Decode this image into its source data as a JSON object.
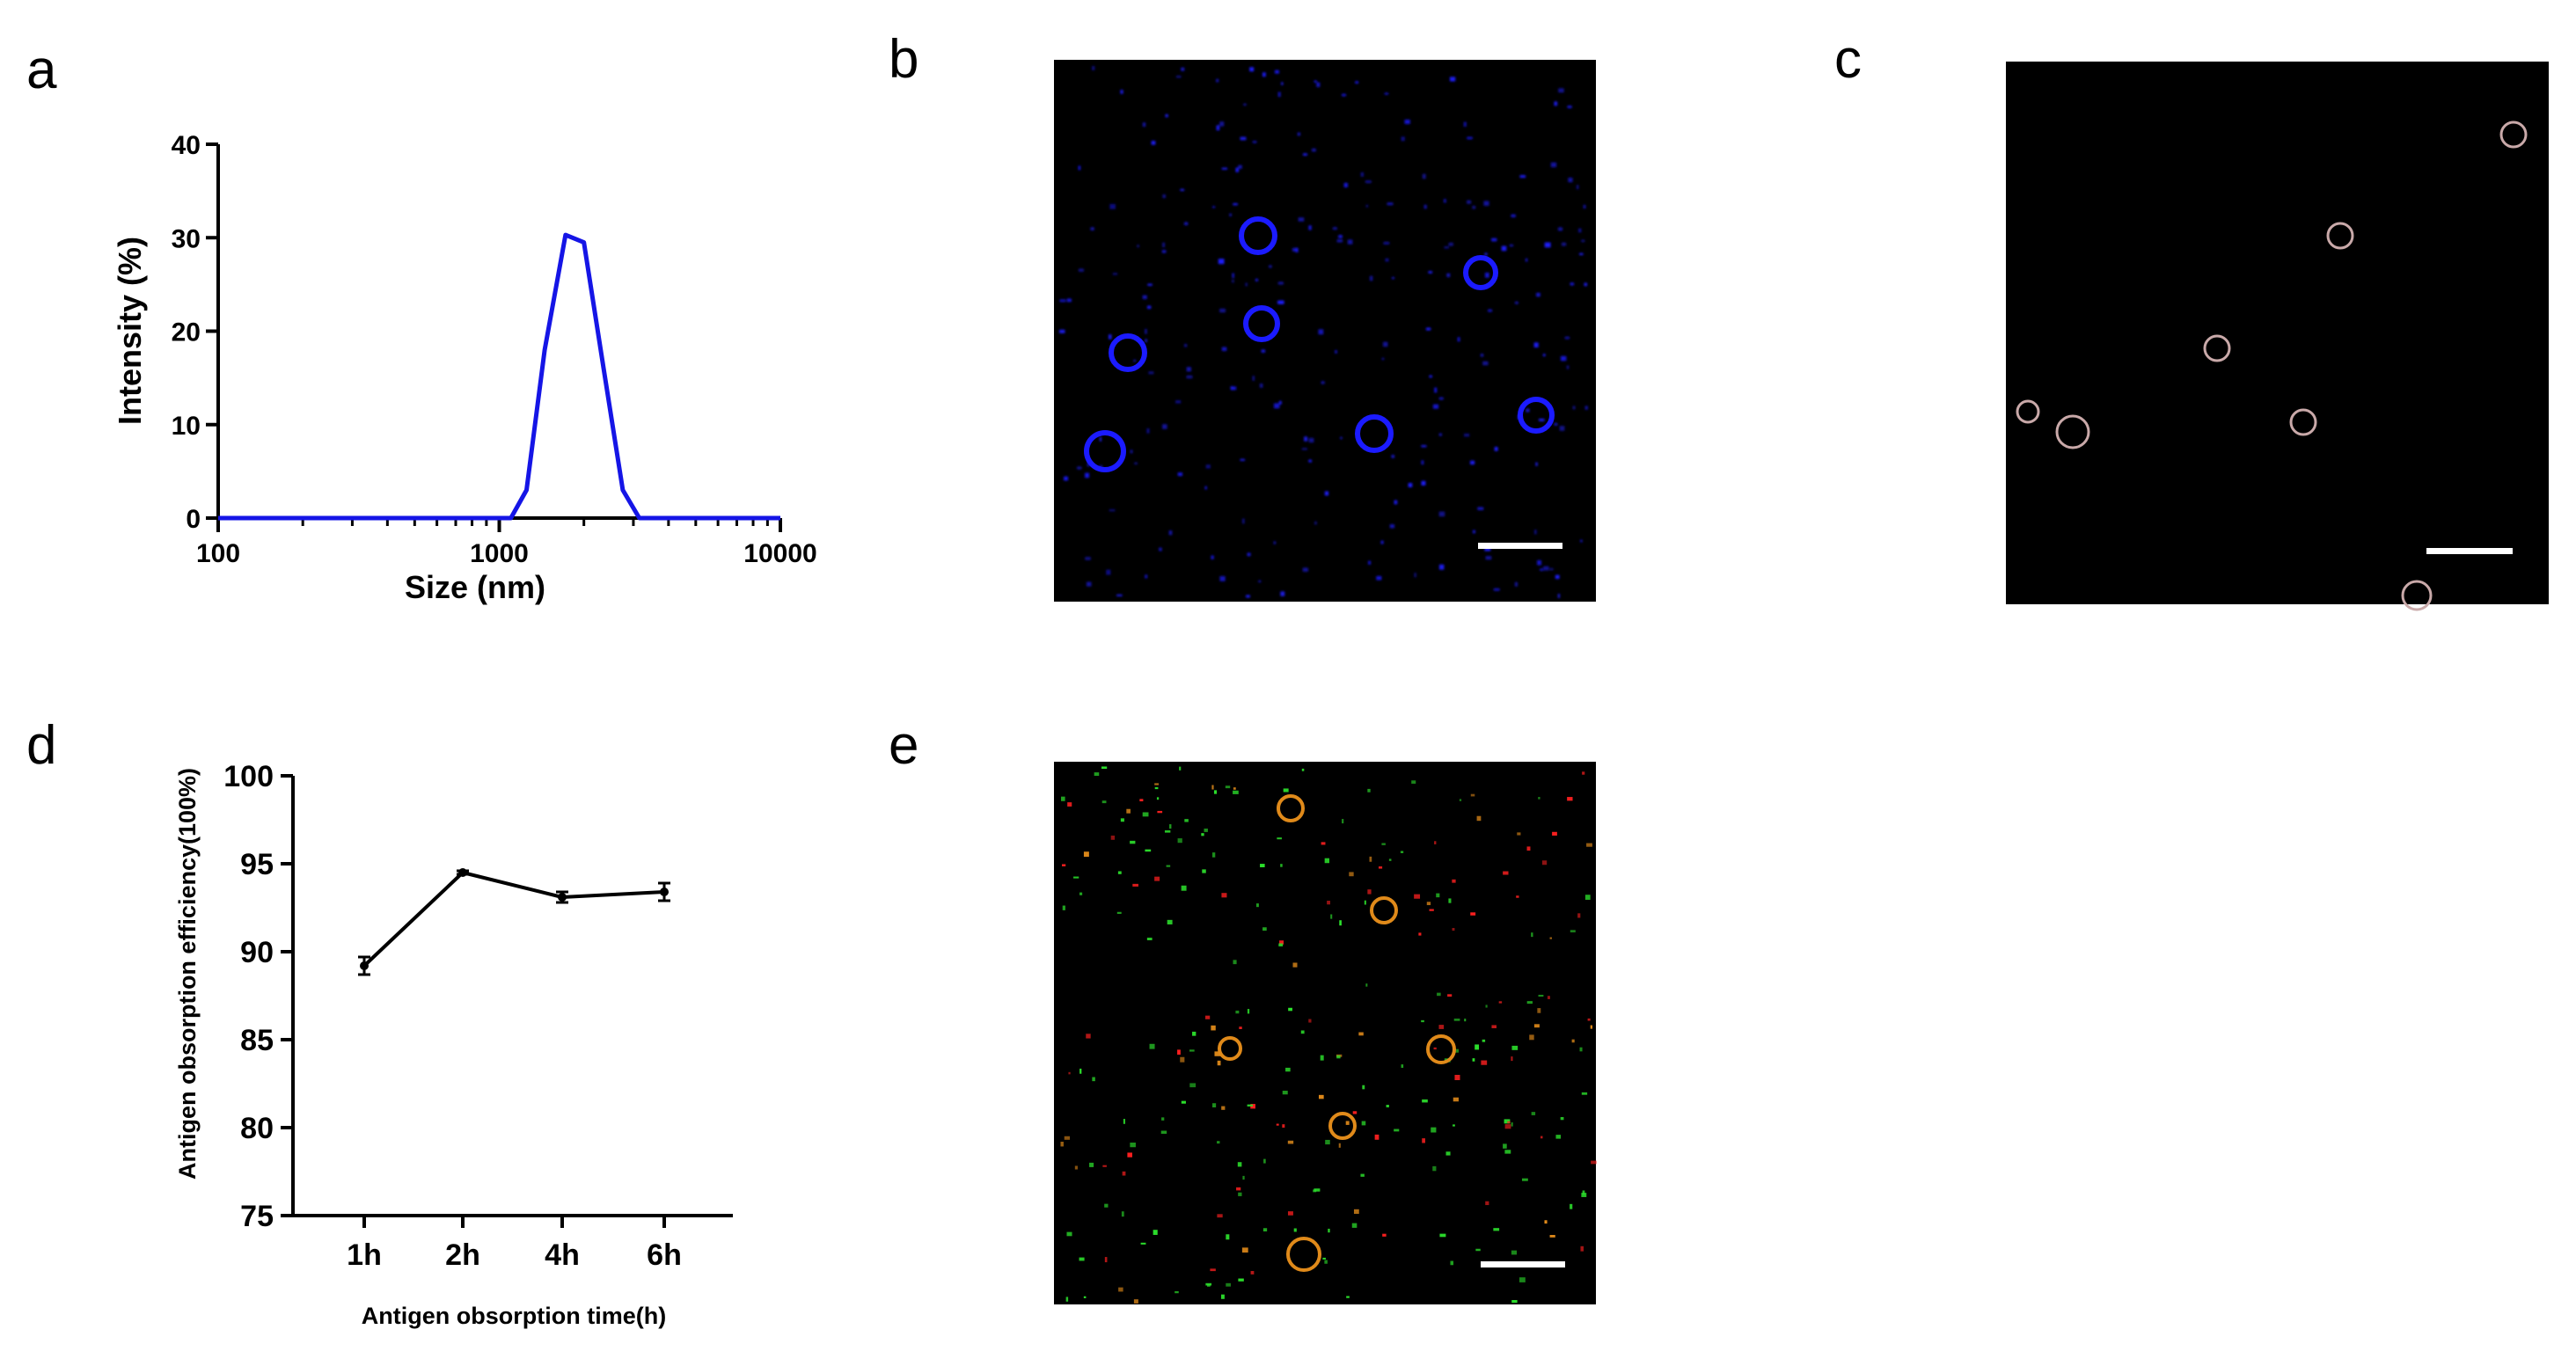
{
  "panels": {
    "a": "a",
    "b": "b",
    "c": "c",
    "d": "d",
    "e": "e"
  },
  "colors": {
    "line_a": "#1515e6",
    "line_d": "#000000",
    "micro_background": "#000000",
    "scale_bar": "#ffffff",
    "b_fluorescence": "#1b1bff",
    "c_particle": "#c9a9a9",
    "e_green": "#2ce02c",
    "e_red": "#ff2020",
    "e_ring": "#e08a1a"
  },
  "chart_data": [
    {
      "panel": "a",
      "type": "line",
      "title": "",
      "xlabel": "Size (nm)",
      "ylabel": "Intensity (%)",
      "x_scale": "log",
      "xlim": [
        100,
        10000
      ],
      "ylim": [
        0,
        40
      ],
      "x_ticks": [
        "100",
        "1000",
        "10000"
      ],
      "y_ticks": [
        "0",
        "10",
        "20",
        "30",
        "40"
      ],
      "grid": false,
      "series": [
        {
          "x": [
            100,
            1100,
            1250,
            1450,
            1720,
            2000,
            2350,
            2750,
            3150,
            10000
          ],
          "y": [
            0,
            0,
            3,
            18,
            30.3,
            29.5,
            16,
            3,
            0,
            0
          ]
        }
      ]
    },
    {
      "panel": "d",
      "type": "line",
      "title": "",
      "xlabel": "Antigen obsorption time(h)",
      "ylabel": "Antigen obsorption efficiency(100%)",
      "categories": [
        "1h",
        "2h",
        "4h",
        "6h"
      ],
      "ylim": [
        75,
        100
      ],
      "y_ticks": [
        "75",
        "80",
        "85",
        "90",
        "95",
        "100"
      ],
      "grid": false,
      "series": [
        {
          "values": [
            89.2,
            94.5,
            93.1,
            93.4
          ],
          "errors": [
            0.5,
            0.1,
            0.3,
            0.5
          ]
        }
      ]
    }
  ]
}
